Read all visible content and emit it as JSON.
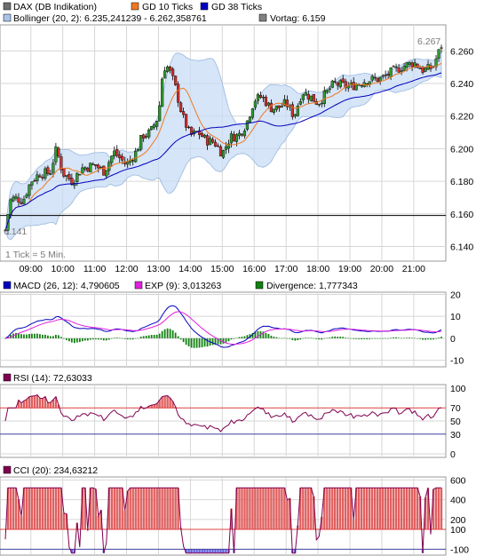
{
  "legend_main": [
    {
      "label": "DAX (DB Indikation)",
      "color": "#6e6e6e"
    },
    {
      "label": "GD 10 Ticks",
      "color": "#f07820"
    },
    {
      "label": "GD 38 Ticks",
      "color": "#0000c0"
    },
    {
      "label": "Bollinger (20, 2): 6.235,241239 - 6.262,358761",
      "color": "#a9c4ea"
    },
    {
      "label": "Vortag: 6.159",
      "color": "#808080"
    }
  ],
  "legend_macd": [
    {
      "label": "MACD (26, 12): 4,790605",
      "color": "#0000c0"
    },
    {
      "label": "EXP (9): 3,013263",
      "color": "#e020e0"
    },
    {
      "label": "Divergence: 1,777343",
      "color": "#108010"
    }
  ],
  "legend_rsi": [
    {
      "label": "RSI (14): 72,63033",
      "color": "#800050"
    }
  ],
  "legend_cci": [
    {
      "label": "CCI (20): 234,63212",
      "color": "#800050"
    }
  ],
  "price_last_label": "6.267",
  "price_low_label": "6.141",
  "interval_note": "1 Tick = 5 Min.",
  "chart_data": [
    {
      "type": "candlestick",
      "title": "DAX (DB Indikation)",
      "x_labels": [
        "09:00",
        "10:00",
        "11:00",
        "12:00",
        "13:00",
        "14:00",
        "15:00",
        "16:00",
        "17:00",
        "18:00",
        "19:00",
        "20:00",
        "21:00"
      ],
      "y_ticks": [
        "6.260",
        "6.240",
        "6.220",
        "6.200",
        "6.180",
        "6.160",
        "6.140"
      ],
      "ylim": [
        6.131,
        6.276
      ],
      "reference_line": 6.159,
      "anchors_time": [
        8.2,
        8.35,
        8.5,
        8.75,
        9.0,
        9.3,
        9.6,
        9.8,
        10.0,
        10.3,
        10.6,
        11.0,
        11.3,
        11.6,
        12.0,
        12.3,
        12.5,
        12.75,
        13.0,
        13.15,
        13.3,
        13.5,
        13.75,
        14.0,
        14.25,
        14.5,
        14.75,
        15.0,
        15.25,
        15.5,
        15.75,
        16.0,
        16.25,
        16.5,
        16.75,
        17.0,
        17.25,
        17.5,
        17.75,
        18.0,
        18.5,
        19.0,
        19.5,
        20.0,
        20.3,
        20.6,
        21.0,
        21.3,
        21.6,
        21.8,
        21.9
      ],
      "anchors_close": [
        6.15,
        6.168,
        6.17,
        6.168,
        6.18,
        6.185,
        6.185,
        6.2,
        6.185,
        6.18,
        6.188,
        6.19,
        6.186,
        6.198,
        6.19,
        6.198,
        6.208,
        6.21,
        6.22,
        6.25,
        6.25,
        6.24,
        6.22,
        6.208,
        6.21,
        6.205,
        6.204,
        6.197,
        6.207,
        6.208,
        6.215,
        6.23,
        6.232,
        6.225,
        6.225,
        6.228,
        6.22,
        6.235,
        6.232,
        6.228,
        6.24,
        6.238,
        6.242,
        6.243,
        6.247,
        6.25,
        6.253,
        6.248,
        6.25,
        6.26,
        6.265
      ],
      "series": [
        {
          "name": "GD 10 Ticks",
          "color": "#f07820"
        },
        {
          "name": "GD 38 Ticks",
          "color": "#0000c0"
        },
        {
          "name": "Bollinger (20, 2)",
          "color": "#a9c4ea"
        }
      ]
    },
    {
      "type": "line",
      "title": "MACD (26, 12)",
      "y_ticks": [
        "20",
        "10",
        "0",
        "-10"
      ],
      "ylim": [
        -13,
        21
      ],
      "series": [
        {
          "name": "MACD (26, 12)",
          "color": "#0000c0"
        },
        {
          "name": "EXP (9)",
          "color": "#e020e0"
        },
        {
          "name": "Divergence",
          "color": "#108010"
        }
      ]
    },
    {
      "type": "line",
      "title": "RSI (14)",
      "y_ticks": [
        "100",
        "70",
        "50",
        "30",
        "0"
      ],
      "ylim": [
        0,
        100
      ],
      "levels": [
        70,
        30
      ],
      "series": [
        {
          "name": "RSI (14)",
          "color": "#800050"
        }
      ]
    },
    {
      "type": "line",
      "title": "CCI (20)",
      "y_ticks": [
        "600",
        "400",
        "200",
        "100",
        "-100"
      ],
      "ylim": [
        -160,
        630
      ],
      "levels": [
        100,
        -100
      ],
      "series": [
        {
          "name": "CCI (20)",
          "color": "#800050"
        }
      ]
    }
  ],
  "colors": {
    "grid": "#cccccc",
    "upper_level": "#e04040",
    "lower_level": "#4040a0",
    "fill_over": "#e06060",
    "fill_under": "#6060e0",
    "axis_tick_purple": "#4040c0"
  }
}
